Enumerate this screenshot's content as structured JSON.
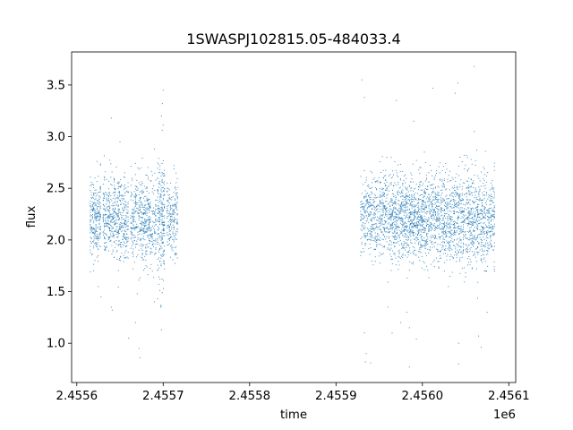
{
  "chart_data": {
    "type": "scatter",
    "title": "1SWASPJ102815.05-484033.4",
    "xlabel": "time",
    "ylabel": "flux",
    "x_offset_label": "1e6",
    "xlim": [
      2455594,
      2456108
    ],
    "ylim": [
      0.62,
      3.82
    ],
    "x_ticks": [
      2455600,
      2455700,
      2455800,
      2455900,
      2456000,
      2456100
    ],
    "x_tick_labels": [
      "2.4556",
      "2.4557",
      "2.4558",
      "2.4559",
      "2.4560",
      "2.4561"
    ],
    "y_ticks": [
      1.0,
      1.5,
      2.0,
      2.5,
      3.0,
      3.5
    ],
    "y_tick_labels": [
      "1.0",
      "1.5",
      "2.0",
      "2.5",
      "3.0",
      "3.5"
    ],
    "grid": false,
    "legend": "none",
    "marker_color": "#1f77b4",
    "series": [
      {
        "clusters": [
          {
            "x_start": 2455615,
            "x_end": 2455628,
            "center": 2.22,
            "spread": 0.4,
            "n": 260
          },
          {
            "x_start": 2455630,
            "x_end": 2455645,
            "center": 2.24,
            "spread": 0.38,
            "n": 260
          },
          {
            "x_start": 2455645,
            "x_end": 2455660,
            "center": 2.2,
            "spread": 0.4,
            "n": 260
          },
          {
            "x_start": 2455662,
            "x_end": 2455678,
            "center": 2.2,
            "spread": 0.42,
            "n": 260
          },
          {
            "x_start": 2455678,
            "x_end": 2455692,
            "center": 2.18,
            "spread": 0.4,
            "n": 240
          },
          {
            "x_start": 2455693,
            "x_end": 2455702,
            "center": 2.2,
            "spread": 0.55,
            "n": 240
          },
          {
            "x_start": 2455704,
            "x_end": 2455717,
            "center": 2.2,
            "spread": 0.38,
            "n": 200
          },
          {
            "x_start": 2455928,
            "x_end": 2455945,
            "center": 2.22,
            "spread": 0.42,
            "n": 240
          },
          {
            "x_start": 2455945,
            "x_end": 2455962,
            "center": 2.24,
            "spread": 0.4,
            "n": 260
          },
          {
            "x_start": 2455962,
            "x_end": 2455978,
            "center": 2.22,
            "spread": 0.42,
            "n": 320
          },
          {
            "x_start": 2455978,
            "x_end": 2455995,
            "center": 2.22,
            "spread": 0.4,
            "n": 340
          },
          {
            "x_start": 2455995,
            "x_end": 2456012,
            "center": 2.22,
            "spread": 0.42,
            "n": 340
          },
          {
            "x_start": 2456012,
            "x_end": 2456030,
            "center": 2.22,
            "spread": 0.4,
            "n": 320
          },
          {
            "x_start": 2456030,
            "x_end": 2456048,
            "center": 2.22,
            "spread": 0.42,
            "n": 320
          },
          {
            "x_start": 2456048,
            "x_end": 2456066,
            "center": 2.2,
            "spread": 0.45,
            "n": 320
          },
          {
            "x_start": 2456066,
            "x_end": 2456084,
            "center": 2.2,
            "spread": 0.42,
            "n": 300
          }
        ],
        "outliers": [
          [
            2455625,
            1.55
          ],
          [
            2455628,
            1.45
          ],
          [
            2455640,
            1.35
          ],
          [
            2455641,
            1.32
          ],
          [
            2455660,
            1.05
          ],
          [
            2455668,
            1.2
          ],
          [
            2455670,
            1.48
          ],
          [
            2455672,
            0.95
          ],
          [
            2455673,
            0.86
          ],
          [
            2455690,
            1.4
          ],
          [
            2455697,
            1.35
          ],
          [
            2455699,
            3.32
          ],
          [
            2455698,
            3.2
          ],
          [
            2455700,
            3.45
          ],
          [
            2455698,
            1.13
          ],
          [
            2455640,
            3.18
          ],
          [
            2455650,
            2.95
          ],
          [
            2455690,
            2.88
          ],
          [
            2455930,
            3.55
          ],
          [
            2455933,
            3.38
          ],
          [
            2455934,
            0.82
          ],
          [
            2455935,
            0.9
          ],
          [
            2455933,
            1.1
          ],
          [
            2455940,
            0.81
          ],
          [
            2455970,
            3.35
          ],
          [
            2455982,
            1.3
          ],
          [
            2455985,
            1.15
          ],
          [
            2455985,
            0.77
          ],
          [
            2455990,
            3.15
          ],
          [
            2455993,
            1.04
          ],
          [
            2456012,
            3.47
          ],
          [
            2456041,
            3.52
          ],
          [
            2456038,
            3.42
          ],
          [
            2456042,
            1.0
          ],
          [
            2456042,
            0.8
          ],
          [
            2456060,
            3.68
          ],
          [
            2456065,
            1.07
          ],
          [
            2456068,
            0.96
          ],
          [
            2456060,
            3.05
          ],
          [
            2455965,
            1.1
          ],
          [
            2455960,
            1.35
          ],
          [
            2455975,
            1.2
          ],
          [
            2456030,
            1.55
          ],
          [
            2456075,
            1.3
          ]
        ]
      }
    ]
  }
}
